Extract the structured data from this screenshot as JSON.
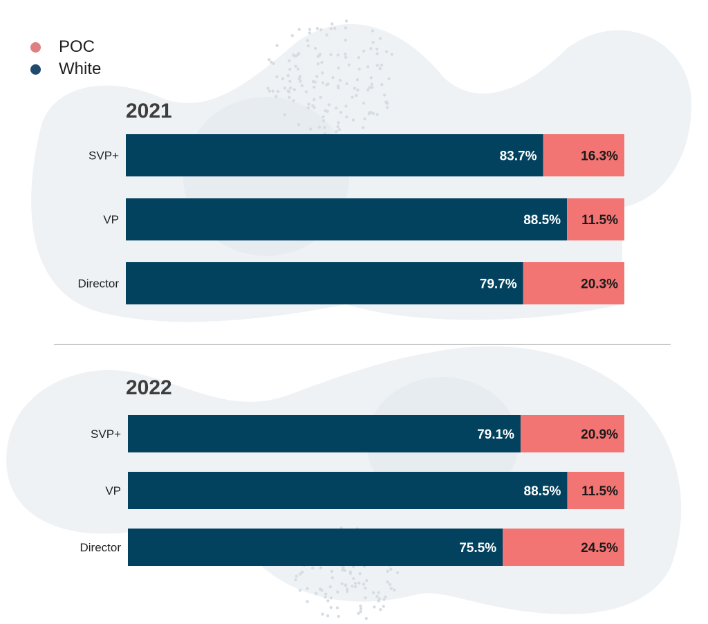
{
  "legend": [
    {
      "label": "POC",
      "color": "#e07f7f"
    },
    {
      "label": "White",
      "color": "#1f4a6e"
    }
  ],
  "colors": {
    "white_bar": "#03425e",
    "poc_bar": "#f27473",
    "title": "#3d3d3d"
  },
  "chart_data": [
    {
      "type": "bar",
      "stacked": true,
      "orientation": "horizontal",
      "title": "2021",
      "categories": [
        "SVP+",
        "VP",
        "Director"
      ],
      "series": [
        {
          "name": "White",
          "values": [
            83.7,
            88.5,
            79.7
          ],
          "labels": [
            "83.7%",
            "88.5%",
            "79.7%"
          ]
        },
        {
          "name": "POC",
          "values": [
            16.3,
            11.5,
            20.3
          ],
          "labels": [
            "16.3%",
            "11.5%",
            "20.3%"
          ]
        }
      ],
      "xlim": [
        0,
        100
      ],
      "grid": false,
      "legend_position": "top-left"
    },
    {
      "type": "bar",
      "stacked": true,
      "orientation": "horizontal",
      "title": "2022",
      "categories": [
        "SVP+",
        "VP",
        "Director"
      ],
      "series": [
        {
          "name": "White",
          "values": [
            79.1,
            88.5,
            75.5
          ],
          "labels": [
            "79.1%",
            "88.5%",
            "75.5%"
          ]
        },
        {
          "name": "POC",
          "values": [
            20.9,
            11.5,
            24.5
          ],
          "labels": [
            "20.9%",
            "11.5%",
            "24.5%"
          ]
        }
      ],
      "xlim": [
        0,
        100
      ],
      "grid": false,
      "legend_position": "top-left"
    }
  ]
}
